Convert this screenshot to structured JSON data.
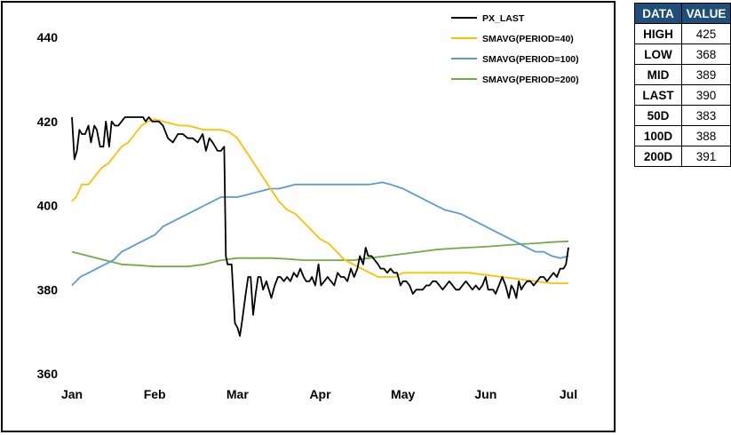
{
  "chart_data": {
    "type": "line",
    "x_tick_labels": [
      "Jan",
      "Feb",
      "Mar",
      "Apr",
      "May",
      "Jun",
      "Jul"
    ],
    "x_range": [
      0,
      6
    ],
    "y_ticks": [
      360,
      380,
      400,
      420,
      440
    ],
    "ylim": [
      360,
      440
    ],
    "grid": false,
    "legend_position": "top-right",
    "series": [
      {
        "name": "PX_LAST",
        "color": "#000000",
        "points": [
          [
            0.0,
            421
          ],
          [
            0.03,
            411
          ],
          [
            0.06,
            413
          ],
          [
            0.09,
            418
          ],
          [
            0.12,
            417
          ],
          [
            0.16,
            417
          ],
          [
            0.2,
            419
          ],
          [
            0.23,
            415
          ],
          [
            0.27,
            419
          ],
          [
            0.3,
            418
          ],
          [
            0.34,
            414
          ],
          [
            0.38,
            414
          ],
          [
            0.41,
            420
          ],
          [
            0.45,
            414
          ],
          [
            0.48,
            420
          ],
          [
            0.52,
            419
          ],
          [
            0.56,
            419
          ],
          [
            0.6,
            420
          ],
          [
            0.64,
            421
          ],
          [
            0.67,
            421
          ],
          [
            0.71,
            421
          ],
          [
            0.75,
            421
          ],
          [
            0.78,
            421
          ],
          [
            0.82,
            421
          ],
          [
            0.86,
            421
          ],
          [
            0.89,
            420
          ],
          [
            0.93,
            421
          ],
          [
            0.97,
            420
          ],
          [
            1.0,
            420
          ],
          [
            1.05,
            420
          ],
          [
            1.1,
            419
          ],
          [
            1.16,
            416
          ],
          [
            1.22,
            415
          ],
          [
            1.28,
            417
          ],
          [
            1.34,
            417
          ],
          [
            1.4,
            416
          ],
          [
            1.46,
            416
          ],
          [
            1.52,
            415
          ],
          [
            1.58,
            417
          ],
          [
            1.62,
            413
          ],
          [
            1.66,
            416
          ],
          [
            1.7,
            415
          ],
          [
            1.76,
            413
          ],
          [
            1.8,
            413
          ],
          [
            1.84,
            414
          ],
          [
            1.86,
            388
          ],
          [
            1.88,
            386
          ],
          [
            1.93,
            386
          ],
          [
            1.97,
            372
          ],
          [
            2.0,
            371
          ],
          [
            2.03,
            369
          ],
          [
            2.06,
            373
          ],
          [
            2.1,
            379
          ],
          [
            2.13,
            383
          ],
          [
            2.16,
            383
          ],
          [
            2.19,
            374
          ],
          [
            2.22,
            379
          ],
          [
            2.25,
            383
          ],
          [
            2.28,
            383
          ],
          [
            2.31,
            380
          ],
          [
            2.35,
            382
          ],
          [
            2.38,
            380
          ],
          [
            2.41,
            378
          ],
          [
            2.45,
            381
          ],
          [
            2.49,
            383
          ],
          [
            2.52,
            383
          ],
          [
            2.56,
            382
          ],
          [
            2.6,
            383
          ],
          [
            2.64,
            382
          ],
          [
            2.68,
            384
          ],
          [
            2.72,
            383
          ],
          [
            2.76,
            385
          ],
          [
            2.8,
            383
          ],
          [
            2.83,
            382
          ],
          [
            2.87,
            382
          ],
          [
            2.9,
            383
          ],
          [
            2.94,
            381
          ],
          [
            2.98,
            386
          ],
          [
            3.01,
            381
          ],
          [
            3.05,
            382
          ],
          [
            3.09,
            383
          ],
          [
            3.13,
            382
          ],
          [
            3.17,
            381
          ],
          [
            3.21,
            384
          ],
          [
            3.25,
            383
          ],
          [
            3.29,
            383
          ],
          [
            3.33,
            382
          ],
          [
            3.37,
            385
          ],
          [
            3.41,
            383
          ],
          [
            3.45,
            385
          ],
          [
            3.48,
            388
          ],
          [
            3.52,
            386
          ],
          [
            3.55,
            390
          ],
          [
            3.58,
            388
          ],
          [
            3.62,
            388
          ],
          [
            3.66,
            387
          ],
          [
            3.7,
            386
          ],
          [
            3.73,
            385
          ],
          [
            3.77,
            385
          ],
          [
            3.81,
            384
          ],
          [
            3.85,
            385
          ],
          [
            3.89,
            384
          ],
          [
            3.93,
            384
          ],
          [
            3.97,
            381
          ],
          [
            4.0,
            382
          ],
          [
            4.04,
            382
          ],
          [
            4.08,
            381
          ],
          [
            4.12,
            379
          ],
          [
            4.16,
            380
          ],
          [
            4.2,
            380
          ],
          [
            4.24,
            380
          ],
          [
            4.28,
            381
          ],
          [
            4.32,
            381
          ],
          [
            4.36,
            382
          ],
          [
            4.4,
            382
          ],
          [
            4.44,
            381
          ],
          [
            4.48,
            380
          ],
          [
            4.52,
            381
          ],
          [
            4.56,
            382
          ],
          [
            4.6,
            381
          ],
          [
            4.64,
            380
          ],
          [
            4.68,
            380
          ],
          [
            4.72,
            381
          ],
          [
            4.76,
            382
          ],
          [
            4.8,
            381
          ],
          [
            4.84,
            380
          ],
          [
            4.88,
            381
          ],
          [
            4.92,
            380
          ],
          [
            4.96,
            381
          ],
          [
            5.0,
            383
          ],
          [
            5.03,
            380
          ],
          [
            5.06,
            380
          ],
          [
            5.09,
            380
          ],
          [
            5.12,
            379
          ],
          [
            5.16,
            381
          ],
          [
            5.2,
            383
          ],
          [
            5.24,
            381
          ],
          [
            5.28,
            378
          ],
          [
            5.31,
            381
          ],
          [
            5.34,
            380
          ],
          [
            5.37,
            378
          ],
          [
            5.4,
            382
          ],
          [
            5.43,
            380
          ],
          [
            5.46,
            381
          ],
          [
            5.5,
            382
          ],
          [
            5.54,
            382
          ],
          [
            5.58,
            381
          ],
          [
            5.62,
            382
          ],
          [
            5.66,
            383
          ],
          [
            5.7,
            383
          ],
          [
            5.74,
            382
          ],
          [
            5.78,
            383
          ],
          [
            5.82,
            384
          ],
          [
            5.86,
            383
          ],
          [
            5.9,
            385
          ],
          [
            5.94,
            385
          ],
          [
            5.97,
            386
          ],
          [
            6.0,
            390
          ]
        ]
      },
      {
        "name": "SMAVG(PERIOD=40)",
        "color": "#ffc000",
        "points": [
          [
            0.0,
            401
          ],
          [
            0.05,
            402
          ],
          [
            0.12,
            405
          ],
          [
            0.2,
            405
          ],
          [
            0.28,
            407
          ],
          [
            0.36,
            409
          ],
          [
            0.44,
            410
          ],
          [
            0.52,
            412
          ],
          [
            0.6,
            414
          ],
          [
            0.68,
            415
          ],
          [
            0.76,
            417
          ],
          [
            0.84,
            419
          ],
          [
            0.92,
            420
          ],
          [
            1.0,
            420.5
          ],
          [
            1.1,
            420
          ],
          [
            1.2,
            419.5
          ],
          [
            1.3,
            419
          ],
          [
            1.4,
            419
          ],
          [
            1.5,
            418.5
          ],
          [
            1.6,
            418
          ],
          [
            1.7,
            418
          ],
          [
            1.8,
            418
          ],
          [
            1.9,
            417.5
          ],
          [
            2.0,
            416
          ],
          [
            2.1,
            413
          ],
          [
            2.2,
            410
          ],
          [
            2.3,
            407
          ],
          [
            2.4,
            404
          ],
          [
            2.5,
            401
          ],
          [
            2.6,
            399
          ],
          [
            2.7,
            398
          ],
          [
            2.8,
            396
          ],
          [
            2.9,
            394
          ],
          [
            3.0,
            392
          ],
          [
            3.1,
            391
          ],
          [
            3.2,
            389
          ],
          [
            3.3,
            387
          ],
          [
            3.4,
            386
          ],
          [
            3.5,
            385
          ],
          [
            3.6,
            384
          ],
          [
            3.7,
            383
          ],
          [
            3.8,
            383
          ],
          [
            3.9,
            383
          ],
          [
            4.0,
            384
          ],
          [
            4.2,
            384
          ],
          [
            4.4,
            384
          ],
          [
            4.6,
            384
          ],
          [
            4.8,
            384
          ],
          [
            5.0,
            383.5
          ],
          [
            5.2,
            383
          ],
          [
            5.4,
            382.5
          ],
          [
            5.6,
            382
          ],
          [
            5.8,
            381.5
          ],
          [
            6.0,
            381.5
          ]
        ]
      },
      {
        "name": "SMAVG(PERIOD=100)",
        "color": "#5b9bd5",
        "points": [
          [
            0.0,
            381
          ],
          [
            0.1,
            383
          ],
          [
            0.2,
            384
          ],
          [
            0.3,
            385
          ],
          [
            0.4,
            386
          ],
          [
            0.5,
            387
          ],
          [
            0.6,
            389
          ],
          [
            0.7,
            390
          ],
          [
            0.8,
            391
          ],
          [
            0.9,
            392
          ],
          [
            1.0,
            393
          ],
          [
            1.1,
            395
          ],
          [
            1.2,
            396
          ],
          [
            1.3,
            397
          ],
          [
            1.4,
            398
          ],
          [
            1.5,
            399
          ],
          [
            1.6,
            400
          ],
          [
            1.7,
            401
          ],
          [
            1.8,
            402
          ],
          [
            1.9,
            402
          ],
          [
            2.0,
            402
          ],
          [
            2.1,
            402.5
          ],
          [
            2.2,
            403
          ],
          [
            2.3,
            403.5
          ],
          [
            2.4,
            404
          ],
          [
            2.5,
            404
          ],
          [
            2.6,
            404.5
          ],
          [
            2.7,
            405
          ],
          [
            2.8,
            405
          ],
          [
            3.0,
            405
          ],
          [
            3.2,
            405
          ],
          [
            3.4,
            405
          ],
          [
            3.6,
            405
          ],
          [
            3.75,
            405.5
          ],
          [
            3.85,
            405
          ],
          [
            4.0,
            404
          ],
          [
            4.1,
            403
          ],
          [
            4.2,
            402
          ],
          [
            4.3,
            401
          ],
          [
            4.4,
            400
          ],
          [
            4.5,
            399
          ],
          [
            4.6,
            398.5
          ],
          [
            4.7,
            398
          ],
          [
            4.8,
            397
          ],
          [
            4.9,
            396
          ],
          [
            5.0,
            395
          ],
          [
            5.1,
            394
          ],
          [
            5.2,
            393
          ],
          [
            5.3,
            392
          ],
          [
            5.4,
            391
          ],
          [
            5.5,
            390
          ],
          [
            5.6,
            389
          ],
          [
            5.7,
            389
          ],
          [
            5.8,
            388
          ],
          [
            5.9,
            387.5
          ],
          [
            6.0,
            388
          ]
        ]
      },
      {
        "name": "SMAVG(PERIOD=200)",
        "color": "#70ad47",
        "points": [
          [
            0.0,
            389
          ],
          [
            0.2,
            388
          ],
          [
            0.4,
            387
          ],
          [
            0.6,
            386
          ],
          [
            0.8,
            385.8
          ],
          [
            1.0,
            385.5
          ],
          [
            1.2,
            385.5
          ],
          [
            1.4,
            385.5
          ],
          [
            1.6,
            386
          ],
          [
            1.8,
            387
          ],
          [
            2.0,
            387.5
          ],
          [
            2.2,
            387.5
          ],
          [
            2.4,
            387.5
          ],
          [
            2.6,
            387.3
          ],
          [
            2.8,
            387
          ],
          [
            3.0,
            387
          ],
          [
            3.2,
            387
          ],
          [
            3.4,
            387
          ],
          [
            3.6,
            387.5
          ],
          [
            3.8,
            388
          ],
          [
            4.0,
            388.5
          ],
          [
            4.2,
            389
          ],
          [
            4.4,
            389.5
          ],
          [
            4.6,
            389.8
          ],
          [
            4.8,
            390
          ],
          [
            5.0,
            390.2
          ],
          [
            5.2,
            390.5
          ],
          [
            5.4,
            390.8
          ],
          [
            5.6,
            391
          ],
          [
            5.8,
            391.3
          ],
          [
            6.0,
            391.5
          ]
        ]
      }
    ]
  },
  "table": {
    "headers": [
      "DATA",
      "VALUE"
    ],
    "rows": [
      {
        "label": "HIGH",
        "value": "425"
      },
      {
        "label": "LOW",
        "value": "368"
      },
      {
        "label": "MID",
        "value": "389"
      },
      {
        "label": "LAST",
        "value": "390"
      },
      {
        "label": "50D",
        "value": "383"
      },
      {
        "label": "100D",
        "value": "388"
      },
      {
        "label": "200D",
        "value": "391"
      }
    ]
  }
}
